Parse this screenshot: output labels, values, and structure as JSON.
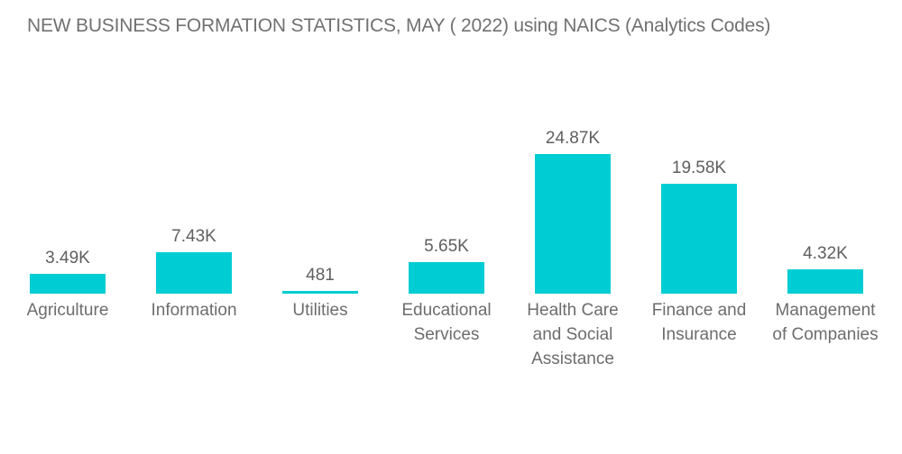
{
  "page": {
    "background": "#ffffff"
  },
  "chart_data": {
    "type": "bar",
    "title": "NEW BUSINESS FORMATION STATISTICS, MAY ( 2022) using  NAICS (Analytics Codes)",
    "categories": [
      "Agriculture",
      "Information",
      "Utilities",
      "Educational Services",
      "Health Care and Social Assistance",
      "Finance and Insurance",
      "Management of Companies"
    ],
    "values": [
      3490,
      7430,
      481,
      5650,
      24870,
      19580,
      4320
    ],
    "value_labels": [
      "3.49K",
      "7.43K",
      "481",
      "5.65K",
      "24.87K",
      "19.58K",
      "4.32K"
    ],
    "xlabel": "",
    "ylabel": "",
    "ylim": [
      0,
      26000
    ],
    "grid": false,
    "legend": "none",
    "bar_color": "#00CDD3",
    "title_color": "#717171",
    "value_label_color": "#5f5f5f",
    "category_label_color": "#6d6d6d"
  }
}
